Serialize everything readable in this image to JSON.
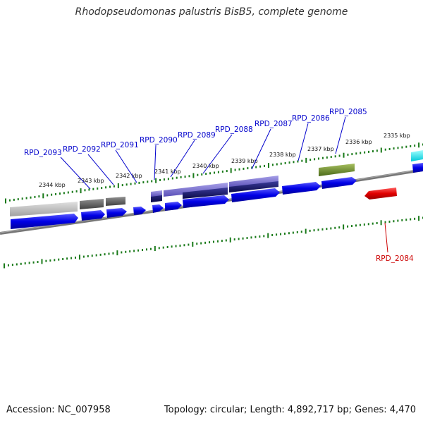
{
  "title": "Rhodopseudomonas palustris BisB5, complete genome",
  "footer": {
    "accession": "Accession: NC_007958",
    "summary": "Topology: circular; Length: 4,892,717 bp; Genes: 4,470"
  },
  "colors": {
    "forward_label": "#0000cc",
    "reverse_label": "#cc0000",
    "tick": "#1a7a1a",
    "backbone": "#777777",
    "gene_blue": "#0000e0",
    "gene_red": "#e00000"
  },
  "ticks": [
    {
      "label": "2335 kbp"
    },
    {
      "label": "2336 kbp"
    },
    {
      "label": "2337 kbp"
    },
    {
      "label": "2338 kbp"
    },
    {
      "label": "2339 kbp"
    },
    {
      "label": "2340 kbp"
    },
    {
      "label": "2341 kbp"
    },
    {
      "label": "2342 kbp"
    },
    {
      "label": "2343 kbp"
    },
    {
      "label": "2344 kbp"
    }
  ],
  "gene_labels": [
    {
      "name": "RPD_2093",
      "strand": "forward"
    },
    {
      "name": "RPD_2092",
      "strand": "forward"
    },
    {
      "name": "RPD_2091",
      "strand": "forward"
    },
    {
      "name": "RPD_2090",
      "strand": "forward"
    },
    {
      "name": "RPD_2089",
      "strand": "forward"
    },
    {
      "name": "RPD_2088",
      "strand": "forward"
    },
    {
      "name": "RPD_2087",
      "strand": "forward"
    },
    {
      "name": "RPD_2086",
      "strand": "forward"
    },
    {
      "name": "RPD_2085",
      "strand": "forward"
    },
    {
      "name": "RPD_2084",
      "strand": "reverse"
    }
  ]
}
